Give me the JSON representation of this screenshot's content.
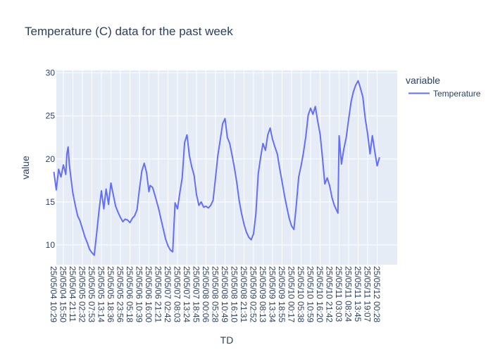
{
  "chart_data": {
    "type": "line",
    "title": "Temperature (C)  data for the past week",
    "xlabel": "TD",
    "ylabel": "value",
    "ylim": [
      7.7,
      30.3
    ],
    "y_ticks": [
      10,
      15,
      20,
      25,
      30
    ],
    "grid": true,
    "legend_title": "variable",
    "legend_position": "top-right",
    "x_tick_labels": [
      "25/05/04 10:29",
      "25/05/04 15:50",
      "25/05/04 21:11",
      "25/05/05 02:32",
      "25/05/05 07:53",
      "25/05/05 13:14",
      "25/05/05 18:36",
      "25/05/05 23:56",
      "25/05/06 05:18",
      "25/05/06 10:39",
      "25/05/06 16:00",
      "25/05/06 21:21",
      "25/05/07 02:42",
      "25/05/07 08:03",
      "25/05/07 13:24",
      "25/05/07 18:45",
      "25/05/08 00:06",
      "25/05/08 05:28",
      "25/05/08 10:49",
      "25/05/08 16:10",
      "25/05/08 21:31",
      "25/05/09 02:52",
      "25/05/09 08:13",
      "25/05/09 13:34",
      "25/05/09 18:55",
      "25/05/10 00:17",
      "25/05/10 05:38",
      "25/05/10 10:59",
      "25/05/10 16:20",
      "25/05/10 21:42",
      "25/05/11 03:03",
      "25/05/11 08:24",
      "25/05/11 13:45",
      "25/05/11 19:07",
      "25/05/12 00:28"
    ],
    "series": [
      {
        "name": "Temperature",
        "color": "#636efa",
        "points": [
          [
            "25/05/04 10:29",
            18.5
          ],
          [
            "25/05/04 11:49",
            16.4
          ],
          [
            "25/05/04 13:09",
            18.8
          ],
          [
            "25/05/04 14:30",
            17.9
          ],
          [
            "25/05/04 15:50",
            19.3
          ],
          [
            "25/05/04 17:10",
            18.2
          ],
          [
            "25/05/04 17:50",
            20.6
          ],
          [
            "25/05/04 18:30",
            21.4
          ],
          [
            "25/05/04 19:10",
            19.4
          ],
          [
            "25/05/04 19:51",
            18.2
          ],
          [
            "25/05/04 21:11",
            16.0
          ],
          [
            "25/05/04 22:31",
            14.6
          ],
          [
            "25/05/04 23:51",
            13.4
          ],
          [
            "25/05/05 01:12",
            12.8
          ],
          [
            "25/05/05 02:32",
            11.9
          ],
          [
            "25/05/05 03:52",
            11.0
          ],
          [
            "25/05/05 05:13",
            10.3
          ],
          [
            "25/05/05 06:33",
            9.5
          ],
          [
            "25/05/05 07:53",
            9.1
          ],
          [
            "25/05/05 09:13",
            8.8
          ],
          [
            "25/05/05 10:34",
            11.3
          ],
          [
            "25/05/05 11:54",
            14.0
          ],
          [
            "25/05/05 13:14",
            16.3
          ],
          [
            "25/05/05 14:35",
            14.2
          ],
          [
            "25/05/05 15:55",
            16.5
          ],
          [
            "25/05/05 17:15",
            14.7
          ],
          [
            "25/05/05 18:36",
            17.2
          ],
          [
            "25/05/05 19:56",
            15.8
          ],
          [
            "25/05/05 21:16",
            14.5
          ],
          [
            "25/05/05 22:36",
            13.8
          ],
          [
            "25/05/05 23:56",
            13.2
          ],
          [
            "25/05/06 01:17",
            12.7
          ],
          [
            "25/05/06 02:37",
            13.0
          ],
          [
            "25/05/06 03:58",
            12.9
          ],
          [
            "25/05/06 05:18",
            12.6
          ],
          [
            "25/05/06 06:38",
            13.1
          ],
          [
            "25/05/06 07:58",
            13.4
          ],
          [
            "25/05/06 09:19",
            14.1
          ],
          [
            "25/05/06 10:39",
            16.5
          ],
          [
            "25/05/06 12:00",
            18.6
          ],
          [
            "25/05/06 13:20",
            19.5
          ],
          [
            "25/05/06 14:40",
            18.4
          ],
          [
            "25/05/06 16:00",
            16.2
          ],
          [
            "25/05/06 16:40",
            16.9
          ],
          [
            "25/05/06 18:01",
            16.7
          ],
          [
            "25/05/06 19:21",
            15.8
          ],
          [
            "25/05/06 21:21",
            14.3
          ],
          [
            "25/05/06 22:41",
            13.1
          ],
          [
            "25/05/07 00:02",
            11.9
          ],
          [
            "25/05/07 01:22",
            10.7
          ],
          [
            "25/05/07 02:42",
            9.9
          ],
          [
            "25/05/07 04:02",
            9.4
          ],
          [
            "25/05/07 05:23",
            9.2
          ],
          [
            "25/05/07 06:43",
            14.9
          ],
          [
            "25/05/07 08:03",
            14.2
          ],
          [
            "25/05/07 09:24",
            16.1
          ],
          [
            "25/05/07 10:44",
            17.8
          ],
          [
            "25/05/07 12:04",
            21.9
          ],
          [
            "25/05/07 13:24",
            22.8
          ],
          [
            "25/05/07 14:45",
            20.4
          ],
          [
            "25/05/07 16:05",
            19.1
          ],
          [
            "25/05/07 17:25",
            18.1
          ],
          [
            "25/05/07 18:45",
            15.9
          ],
          [
            "25/05/07 20:06",
            14.6
          ],
          [
            "25/05/07 21:26",
            15.0
          ],
          [
            "25/05/07 22:46",
            14.4
          ],
          [
            "25/05/08 00:06",
            14.5
          ],
          [
            "25/05/08 01:27",
            14.3
          ],
          [
            "25/05/08 02:47",
            14.6
          ],
          [
            "25/05/08 04:07",
            15.2
          ],
          [
            "25/05/08 05:28",
            17.8
          ],
          [
            "25/05/08 06:48",
            20.4
          ],
          [
            "25/05/08 08:08",
            22.2
          ],
          [
            "25/05/08 09:28",
            24.1
          ],
          [
            "25/05/08 10:49",
            24.7
          ],
          [
            "25/05/08 12:09",
            22.5
          ],
          [
            "25/05/08 13:29",
            21.8
          ],
          [
            "25/05/08 14:50",
            20.4
          ],
          [
            "25/05/08 16:10",
            18.9
          ],
          [
            "25/05/08 17:30",
            17.2
          ],
          [
            "25/05/08 18:50",
            15.1
          ],
          [
            "25/05/08 20:11",
            13.6
          ],
          [
            "25/05/08 21:31",
            12.4
          ],
          [
            "25/05/08 22:51",
            11.5
          ],
          [
            "25/05/09 00:12",
            10.9
          ],
          [
            "25/05/09 01:32",
            10.6
          ],
          [
            "25/05/09 02:52",
            11.3
          ],
          [
            "25/05/09 04:12",
            13.6
          ],
          [
            "25/05/09 05:33",
            18.3
          ],
          [
            "25/05/09 06:53",
            20.2
          ],
          [
            "25/05/09 08:13",
            21.8
          ],
          [
            "25/05/09 09:34",
            21.0
          ],
          [
            "25/05/09 10:54",
            22.8
          ],
          [
            "25/05/09 12:14",
            23.6
          ],
          [
            "25/05/09 13:34",
            22.3
          ],
          [
            "25/05/09 14:55",
            21.4
          ],
          [
            "25/05/09 16:15",
            20.6
          ],
          [
            "25/05/09 17:35",
            18.9
          ],
          [
            "25/05/09 18:55",
            17.4
          ],
          [
            "25/05/09 20:16",
            15.8
          ],
          [
            "25/05/09 21:36",
            14.4
          ],
          [
            "25/05/09 22:56",
            13.1
          ],
          [
            "25/05/10 00:17",
            12.2
          ],
          [
            "25/05/10 01:37",
            11.8
          ],
          [
            "25/05/10 02:57",
            14.6
          ],
          [
            "25/05/10 04:18",
            17.9
          ],
          [
            "25/05/10 05:38",
            19.2
          ],
          [
            "25/05/10 06:58",
            20.7
          ],
          [
            "25/05/10 08:18",
            22.6
          ],
          [
            "25/05/10 09:39",
            25.1
          ],
          [
            "25/05/10 10:59",
            25.9
          ],
          [
            "25/05/10 12:19",
            25.2
          ],
          [
            "25/05/10 13:40",
            26.1
          ],
          [
            "25/05/10 15:00",
            24.4
          ],
          [
            "25/05/10 16:20",
            22.9
          ],
          [
            "25/05/10 17:41",
            20.1
          ],
          [
            "25/05/10 19:01",
            17.1
          ],
          [
            "25/05/10 20:21",
            17.8
          ],
          [
            "25/05/10 21:42",
            16.9
          ],
          [
            "25/05/10 23:02",
            15.5
          ],
          [
            "25/05/11 00:22",
            14.6
          ],
          [
            "25/05/11 01:43",
            14.0
          ],
          [
            "25/05/11 02:23",
            13.7
          ],
          [
            "25/05/11 03:03",
            22.7
          ],
          [
            "25/05/11 04:23",
            19.4
          ],
          [
            "25/05/11 05:44",
            21.2
          ],
          [
            "25/05/11 07:04",
            22.5
          ],
          [
            "25/05/11 08:24",
            24.6
          ],
          [
            "25/05/11 09:45",
            26.6
          ],
          [
            "25/05/11 11:05",
            27.8
          ],
          [
            "25/05/11 12:25",
            28.6
          ],
          [
            "25/05/11 13:45",
            29.1
          ],
          [
            "25/05/11 15:06",
            28.2
          ],
          [
            "25/05/11 16:26",
            27.2
          ],
          [
            "25/05/11 17:46",
            24.7
          ],
          [
            "25/05/11 19:07",
            22.9
          ],
          [
            "25/05/11 20:27",
            20.6
          ],
          [
            "25/05/11 21:47",
            22.7
          ],
          [
            "25/05/11 23:08",
            20.9
          ],
          [
            "25/05/12 00:28",
            19.2
          ],
          [
            "25/05/12 01:48",
            20.2
          ]
        ]
      }
    ]
  }
}
